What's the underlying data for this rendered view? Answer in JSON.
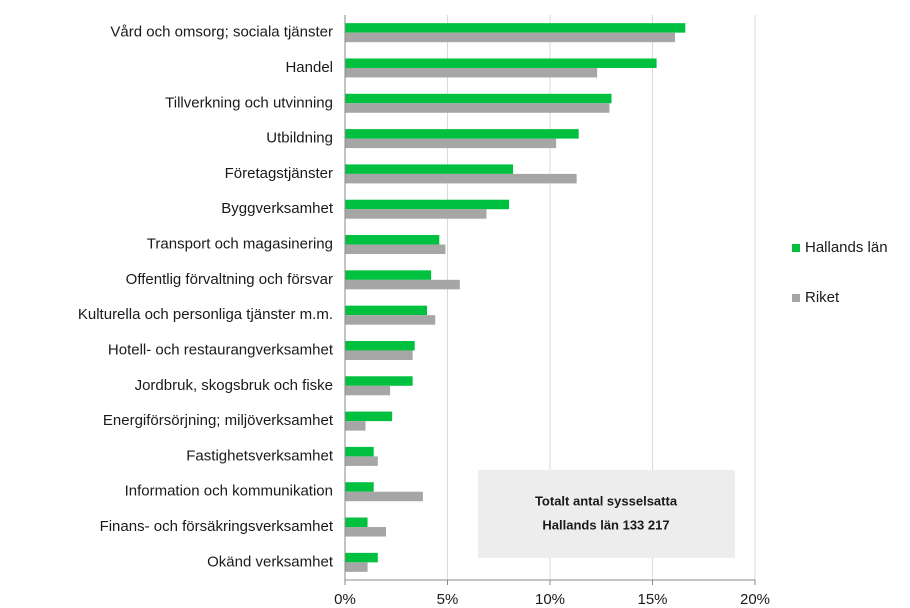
{
  "chart_data": {
    "type": "barh",
    "categories": [
      "Vård och omsorg; sociala tjänster",
      "Handel",
      "Tillverkning och utvinning",
      "Utbildning",
      "Företagstjänster",
      "Byggverksamhet",
      "Transport och magasinering",
      "Offentlig förvaltning och försvar",
      "Kulturella och personliga tjänster m.m.",
      "Hotell- och restaurangverksamhet",
      "Jordbruk, skogsbruk och fiske",
      "Energiförsörjning; miljöverksamhet",
      "Fastighetsverksamhet",
      "Information och kommunikation",
      "Finans- och försäkringsverksamhet",
      "Okänd verksamhet"
    ],
    "series": [
      {
        "name": "Hallands län",
        "color": "#00c040",
        "values": [
          16.6,
          15.2,
          13.0,
          11.4,
          8.2,
          8.0,
          4.6,
          4.2,
          4.0,
          3.4,
          3.3,
          2.3,
          1.4,
          1.4,
          1.1,
          1.6
        ]
      },
      {
        "name": "Riket",
        "color": "#a6a6a6",
        "values": [
          16.1,
          12.3,
          12.9,
          10.3,
          11.3,
          6.9,
          4.9,
          5.6,
          4.4,
          3.3,
          2.2,
          1.0,
          1.6,
          3.8,
          2.0,
          1.1
        ]
      }
    ],
    "xlim": [
      0,
      20
    ],
    "xticks": [
      {
        "value": 0,
        "label": "0%"
      },
      {
        "value": 5,
        "label": "5%"
      },
      {
        "value": 10,
        "label": "10%"
      },
      {
        "value": 15,
        "label": "15%"
      },
      {
        "value": 20,
        "label": "20%"
      }
    ],
    "grid": true,
    "legend": "right",
    "annotations": [
      "Totalt antal sysselsatta",
      "Hallands län 133 217"
    ]
  }
}
